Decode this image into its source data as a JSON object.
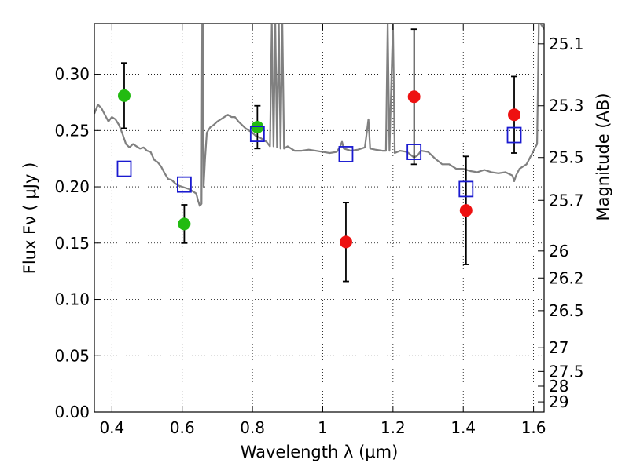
{
  "chart_data": {
    "type": "scatter",
    "xlabel": "Wavelength  λ (μm)",
    "ylabel": "Flux  Fν ( μJy )",
    "ylabel_right": "Magnitude (AB)",
    "xlim": [
      0.35,
      1.63
    ],
    "ylim": [
      0.0,
      0.345
    ],
    "grid": true,
    "x_ticks": [
      0.4,
      0.6,
      0.8,
      1.0,
      1.2,
      1.4,
      1.6
    ],
    "x_tick_labels": [
      "0.4",
      "0.6",
      "0.8",
      "1",
      "1.2",
      "1.4",
      "1.6"
    ],
    "y_ticks": [
      0.0,
      0.05,
      0.1,
      0.15,
      0.2,
      0.25,
      0.3
    ],
    "y_tick_labels": [
      "0.00",
      "0.05",
      "0.10",
      "0.15",
      "0.20",
      "0.25",
      "0.30"
    ],
    "right_axis_ticks": [
      {
        "label": "25.1",
        "flux": 0.327
      },
      {
        "label": "25.3",
        "flux": 0.272
      },
      {
        "label": "25.5",
        "flux": 0.226
      },
      {
        "label": "25.7",
        "flux": 0.188
      },
      {
        "label": "26",
        "flux": 0.143
      },
      {
        "label": "26.2",
        "flux": 0.119
      },
      {
        "label": "26.5",
        "flux": 0.09
      },
      {
        "label": "27",
        "flux": 0.057
      },
      {
        "label": "27.5",
        "flux": 0.036
      },
      {
        "label": "28",
        "flux": 0.023
      },
      {
        "label": "29",
        "flux": 0.009
      }
    ],
    "series": [
      {
        "kind": "points_with_errors",
        "color": "#22bb11",
        "points": [
          {
            "x": 0.435,
            "y": 0.281,
            "err": 0.029
          },
          {
            "x": 0.606,
            "y": 0.167,
            "err": 0.017
          },
          {
            "x": 0.814,
            "y": 0.253,
            "err": 0.019
          }
        ]
      },
      {
        "kind": "points_with_errors",
        "color": "#ee1111",
        "points": [
          {
            "x": 1.066,
            "y": 0.151,
            "err": 0.035
          },
          {
            "x": 1.26,
            "y": 0.28,
            "err": 0.06
          },
          {
            "x": 1.408,
            "y": 0.179,
            "err": 0.048
          },
          {
            "x": 1.545,
            "y": 0.264,
            "err": 0.034
          }
        ]
      },
      {
        "kind": "model_squares",
        "color": "#1a1ad0",
        "points": [
          {
            "x": 0.435,
            "y": 0.216
          },
          {
            "x": 0.606,
            "y": 0.202
          },
          {
            "x": 0.814,
            "y": 0.247
          },
          {
            "x": 1.066,
            "y": 0.229
          },
          {
            "x": 1.26,
            "y": 0.231
          },
          {
            "x": 1.408,
            "y": 0.198
          },
          {
            "x": 1.545,
            "y": 0.246
          }
        ]
      },
      {
        "kind": "spectrum_line",
        "color": "#808080",
        "points": [
          [
            0.35,
            0.265
          ],
          [
            0.36,
            0.273
          ],
          [
            0.37,
            0.27
          ],
          [
            0.38,
            0.264
          ],
          [
            0.39,
            0.258
          ],
          [
            0.4,
            0.262
          ],
          [
            0.41,
            0.26
          ],
          [
            0.42,
            0.255
          ],
          [
            0.43,
            0.247
          ],
          [
            0.44,
            0.238
          ],
          [
            0.45,
            0.235
          ],
          [
            0.46,
            0.238
          ],
          [
            0.47,
            0.236
          ],
          [
            0.48,
            0.234
          ],
          [
            0.49,
            0.235
          ],
          [
            0.5,
            0.232
          ],
          [
            0.51,
            0.231
          ],
          [
            0.52,
            0.224
          ],
          [
            0.53,
            0.222
          ],
          [
            0.54,
            0.218
          ],
          [
            0.55,
            0.212
          ],
          [
            0.56,
            0.207
          ],
          [
            0.57,
            0.206
          ],
          [
            0.58,
            0.203
          ],
          [
            0.59,
            0.201
          ],
          [
            0.6,
            0.2
          ],
          [
            0.61,
            0.199
          ],
          [
            0.62,
            0.198
          ],
          [
            0.63,
            0.196
          ],
          [
            0.64,
            0.194
          ],
          [
            0.645,
            0.188
          ],
          [
            0.65,
            0.183
          ],
          [
            0.655,
            0.185
          ],
          [
            0.657,
            0.345
          ],
          [
            0.659,
            0.345
          ],
          [
            0.661,
            0.2
          ],
          [
            0.665,
            0.225
          ],
          [
            0.67,
            0.248
          ],
          [
            0.68,
            0.253
          ],
          [
            0.69,
            0.255
          ],
          [
            0.7,
            0.258
          ],
          [
            0.72,
            0.262
          ],
          [
            0.73,
            0.264
          ],
          [
            0.74,
            0.262
          ],
          [
            0.75,
            0.262
          ],
          [
            0.76,
            0.258
          ],
          [
            0.77,
            0.255
          ],
          [
            0.78,
            0.252
          ],
          [
            0.79,
            0.25
          ],
          [
            0.8,
            0.248
          ],
          [
            0.81,
            0.245
          ],
          [
            0.82,
            0.244
          ],
          [
            0.83,
            0.242
          ],
          [
            0.84,
            0.24
          ],
          [
            0.85,
            0.236
          ],
          [
            0.855,
            0.345
          ],
          [
            0.86,
            0.236
          ],
          [
            0.865,
            0.345
          ],
          [
            0.87,
            0.235
          ],
          [
            0.875,
            0.345
          ],
          [
            0.88,
            0.234
          ],
          [
            0.885,
            0.345
          ],
          [
            0.89,
            0.234
          ],
          [
            0.9,
            0.236
          ],
          [
            0.92,
            0.232
          ],
          [
            0.94,
            0.232
          ],
          [
            0.96,
            0.233
          ],
          [
            0.98,
            0.232
          ],
          [
            1.0,
            0.231
          ],
          [
            1.02,
            0.23
          ],
          [
            1.04,
            0.231
          ],
          [
            1.05,
            0.236
          ],
          [
            1.055,
            0.24
          ],
          [
            1.06,
            0.234
          ],
          [
            1.08,
            0.232
          ],
          [
            1.1,
            0.233
          ],
          [
            1.12,
            0.235
          ],
          [
            1.13,
            0.26
          ],
          [
            1.135,
            0.234
          ],
          [
            1.15,
            0.233
          ],
          [
            1.17,
            0.232
          ],
          [
            1.18,
            0.232
          ],
          [
            1.185,
            0.345
          ],
          [
            1.19,
            0.232
          ],
          [
            1.2,
            0.345
          ],
          [
            1.205,
            0.23
          ],
          [
            1.22,
            0.232
          ],
          [
            1.24,
            0.231
          ],
          [
            1.26,
            0.226
          ],
          [
            1.27,
            0.228
          ],
          [
            1.28,
            0.232
          ],
          [
            1.3,
            0.231
          ],
          [
            1.32,
            0.225
          ],
          [
            1.34,
            0.22
          ],
          [
            1.36,
            0.22
          ],
          [
            1.38,
            0.216
          ],
          [
            1.4,
            0.216
          ],
          [
            1.42,
            0.214
          ],
          [
            1.44,
            0.213
          ],
          [
            1.46,
            0.215
          ],
          [
            1.48,
            0.213
          ],
          [
            1.5,
            0.212
          ],
          [
            1.52,
            0.213
          ],
          [
            1.54,
            0.21
          ],
          [
            1.545,
            0.205
          ],
          [
            1.55,
            0.21
          ],
          [
            1.56,
            0.216
          ],
          [
            1.58,
            0.22
          ],
          [
            1.6,
            0.232
          ],
          [
            1.605,
            0.235
          ],
          [
            1.61,
            0.238
          ],
          [
            1.615,
            0.345
          ],
          [
            1.62,
            0.345
          ],
          [
            1.63,
            0.34
          ]
        ]
      }
    ]
  },
  "colors": {
    "grid": "#000000",
    "errorbar": "#000000",
    "axes": "#000000"
  }
}
